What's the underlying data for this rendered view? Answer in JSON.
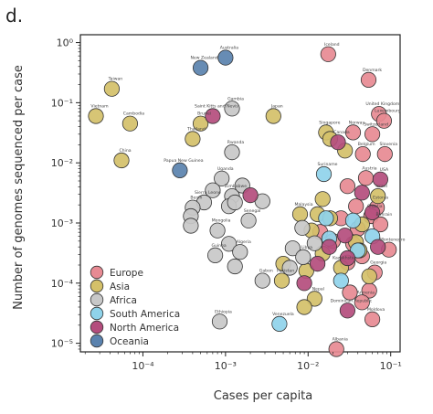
{
  "figure": {
    "panel_label": "d."
  },
  "chart_data": {
    "type": "scatter",
    "xlabel": "Cases per capita",
    "ylabel": "Number of genomes sequenced per case",
    "x_scale": "log",
    "y_scale": "log",
    "xlim": [
      1.75e-05,
      0.13
    ],
    "ylim": [
      7.2e-06,
      1.35
    ],
    "x_ticks": [
      {
        "value": 0.0001,
        "label": "10⁻⁴"
      },
      {
        "value": 0.001,
        "label": "10⁻³"
      },
      {
        "value": 0.01,
        "label": "10⁻²"
      },
      {
        "value": 0.1,
        "label": "10⁻¹"
      }
    ],
    "y_ticks": [
      {
        "value": 1,
        "label": "10⁰"
      },
      {
        "value": 0.1,
        "label": "10⁻¹"
      },
      {
        "value": 0.01,
        "label": "10⁻²"
      },
      {
        "value": 0.001,
        "label": "10⁻³"
      },
      {
        "value": 0.0001,
        "label": "10⁻⁴"
      },
      {
        "value": 1e-05,
        "label": "10⁻⁵"
      }
    ],
    "grid": false,
    "legend": {
      "placement": "lower-left",
      "entries": [
        {
          "name": "Europe",
          "color": "#e78a93"
        },
        {
          "name": "Asia",
          "color": "#d4c069"
        },
        {
          "name": "Africa",
          "color": "#c8c8c8"
        },
        {
          "name": "South America",
          "color": "#8fd3ea"
        },
        {
          "name": "North America",
          "color": "#b44d7d"
        },
        {
          "name": "Oceania",
          "color": "#5a82ae"
        }
      ]
    },
    "series": [
      {
        "name": "Europe",
        "color": "#e78a93",
        "points": [
          {
            "x": 0.0175,
            "y": 0.64,
            "label": "Iceland"
          },
          {
            "x": 0.054,
            "y": 0.24,
            "label": "Denmark"
          },
          {
            "x": 0.072,
            "y": 0.065,
            "label": "United Kingdom"
          },
          {
            "x": 0.083,
            "y": 0.05,
            "label": "Luxembourg"
          },
          {
            "x": 0.06,
            "y": 0.03,
            "label": "Switzerland"
          },
          {
            "x": 0.035,
            "y": 0.032,
            "label": "Norway"
          },
          {
            "x": 0.046,
            "y": 0.014,
            "label": "Belgium"
          },
          {
            "x": 0.085,
            "y": 0.014,
            "label": "Slovenia"
          },
          {
            "x": 0.05,
            "y": 0.0056,
            "label": "Austria"
          },
          {
            "x": 0.03,
            "y": 0.0041,
            "label": ""
          },
          {
            "x": 0.068,
            "y": 0.0018,
            "label": "Estonia"
          },
          {
            "x": 0.058,
            "y": 0.0013,
            "label": "Croatia"
          },
          {
            "x": 0.075,
            "y": 0.00095,
            "label": "Bahrain"
          },
          {
            "x": 0.04,
            "y": 0.0008,
            "label": ""
          },
          {
            "x": 0.025,
            "y": 0.0012,
            "label": ""
          },
          {
            "x": 0.095,
            "y": 0.00036,
            "label": "Montenegro"
          },
          {
            "x": 0.035,
            "y": 0.00045,
            "label": ""
          },
          {
            "x": 0.045,
            "y": 0.00028,
            "label": ""
          },
          {
            "x": 0.03,
            "y": 0.00022,
            "label": ""
          },
          {
            "x": 0.064,
            "y": 0.00015,
            "label": "Georgia"
          },
          {
            "x": 0.055,
            "y": 7.5e-05,
            "label": ""
          },
          {
            "x": 0.032,
            "y": 7e-05,
            "label": ""
          },
          {
            "x": 0.045,
            "y": 4.8e-05,
            "label": "Armenia"
          },
          {
            "x": 0.06,
            "y": 2.5e-05,
            "label": "Moldova"
          },
          {
            "x": 0.022,
            "y": 8e-06,
            "label": "Albania"
          },
          {
            "x": 0.014,
            "y": 0.00071,
            "label": ""
          },
          {
            "x": 0.02,
            "y": 0.0005,
            "label": ""
          },
          {
            "x": 0.038,
            "y": 0.0019,
            "label": ""
          }
        ]
      },
      {
        "name": "Asia",
        "color": "#d4c069",
        "points": [
          {
            "x": 4.2e-05,
            "y": 0.17,
            "label": "Taiwan"
          },
          {
            "x": 2.7e-05,
            "y": 0.06,
            "label": "Vietnam"
          },
          {
            "x": 7e-05,
            "y": 0.045,
            "label": "Cambodia"
          },
          {
            "x": 5.5e-05,
            "y": 0.011,
            "label": "China"
          },
          {
            "x": 0.0005,
            "y": 0.045,
            "label": "Brunei"
          },
          {
            "x": 0.0038,
            "y": 0.06,
            "label": "Japan"
          },
          {
            "x": 0.0004,
            "y": 0.025,
            "label": "Thailand"
          },
          {
            "x": 0.0165,
            "y": 0.032,
            "label": "Singapore"
          },
          {
            "x": 0.0185,
            "y": 0.025,
            "label": ""
          },
          {
            "x": 0.028,
            "y": 0.016,
            "label": ""
          },
          {
            "x": 0.013,
            "y": 0.0014,
            "label": ""
          },
          {
            "x": 0.0185,
            "y": 0.0012,
            "label": ""
          },
          {
            "x": 0.045,
            "y": 0.00095,
            "label": ""
          },
          {
            "x": 0.015,
            "y": 0.00031,
            "label": ""
          },
          {
            "x": 0.038,
            "y": 0.00048,
            "label": ""
          },
          {
            "x": 0.0095,
            "y": 0.00016,
            "label": ""
          },
          {
            "x": 0.005,
            "y": 0.00021,
            "label": ""
          },
          {
            "x": 0.0048,
            "y": 0.00011,
            "label": "Pakistan"
          },
          {
            "x": 0.012,
            "y": 5.5e-05,
            "label": "Nepal"
          },
          {
            "x": 0.009,
            "y": 4e-05,
            "label": ""
          },
          {
            "x": 0.008,
            "y": 0.0014,
            "label": "Malaysia"
          },
          {
            "x": 0.011,
            "y": 0.00075,
            "label": ""
          },
          {
            "x": 0.025,
            "y": 0.00018,
            "label": "Kazakhstan"
          },
          {
            "x": 0.055,
            "y": 0.00013,
            "label": ""
          },
          {
            "x": 0.042,
            "y": 0.00035,
            "label": ""
          },
          {
            "x": 0.07,
            "y": 0.0028,
            "label": "Israel"
          },
          {
            "x": 0.015,
            "y": 0.0025,
            "label": ""
          }
        ]
      },
      {
        "name": "Africa",
        "color": "#c8c8c8",
        "points": [
          {
            "x": 0.0012,
            "y": 0.08,
            "label": "Gambia"
          },
          {
            "x": 0.0012,
            "y": 0.015,
            "label": "Rwanda"
          },
          {
            "x": 0.0009,
            "y": 0.0055,
            "label": "Uganda"
          },
          {
            "x": 0.0007,
            "y": 0.0035,
            "label": ""
          },
          {
            "x": 0.00055,
            "y": 0.0022,
            "label": "Sierra Leone"
          },
          {
            "x": 0.0004,
            "y": 0.0018,
            "label": "Benin"
          },
          {
            "x": 0.00038,
            "y": 0.0013,
            "label": ""
          },
          {
            "x": 0.0012,
            "y": 0.0028,
            "label": "Zimbabwe"
          },
          {
            "x": 0.0016,
            "y": 0.0042,
            "label": ""
          },
          {
            "x": 0.0011,
            "y": 0.0019,
            "label": ""
          },
          {
            "x": 0.0013,
            "y": 0.0022,
            "label": ""
          },
          {
            "x": 0.0008,
            "y": 0.00075,
            "label": "Mongolia"
          },
          {
            "x": 0.0019,
            "y": 0.0011,
            "label": "Senegal"
          },
          {
            "x": 0.0028,
            "y": 0.0023,
            "label": ""
          },
          {
            "x": 0.0011,
            "y": 0.00045,
            "label": ""
          },
          {
            "x": 0.00075,
            "y": 0.00029,
            "label": "Guinea"
          },
          {
            "x": 0.0015,
            "y": 0.00033,
            "label": "Algeria"
          },
          {
            "x": 0.0013,
            "y": 0.00019,
            "label": ""
          },
          {
            "x": 0.0028,
            "y": 0.00011,
            "label": "Gabon"
          },
          {
            "x": 0.0065,
            "y": 0.00038,
            "label": ""
          },
          {
            "x": 0.0087,
            "y": 0.00027,
            "label": "Libya"
          },
          {
            "x": 0.012,
            "y": 0.00046,
            "label": ""
          },
          {
            "x": 0.0085,
            "y": 0.00083,
            "label": ""
          },
          {
            "x": 0.00085,
            "y": 2.3e-05,
            "label": "Ethiopia"
          },
          {
            "x": 0.006,
            "y": 0.00018,
            "label": ""
          },
          {
            "x": 0.00038,
            "y": 0.0009,
            "label": ""
          }
        ]
      },
      {
        "name": "South America",
        "color": "#8fd3ea",
        "points": [
          {
            "x": 0.0155,
            "y": 0.0065,
            "label": "Suriname"
          },
          {
            "x": 0.0165,
            "y": 0.0012,
            "label": ""
          },
          {
            "x": 0.035,
            "y": 0.0011,
            "label": ""
          },
          {
            "x": 0.06,
            "y": 0.0006,
            "label": ""
          },
          {
            "x": 0.04,
            "y": 0.00035,
            "label": ""
          },
          {
            "x": 0.025,
            "y": 0.00011,
            "label": ""
          },
          {
            "x": 0.0045,
            "y": 2.1e-05,
            "label": "Venezuela"
          },
          {
            "x": 0.018,
            "y": 0.00055,
            "label": ""
          }
        ]
      },
      {
        "name": "North America",
        "color": "#b44d7d",
        "points": [
          {
            "x": 0.0007,
            "y": 0.06,
            "label": "Saint Kitts and Nevis"
          },
          {
            "x": 0.023,
            "y": 0.022,
            "label": "Canada"
          },
          {
            "x": 0.002,
            "y": 0.0029,
            "label": ""
          },
          {
            "x": 0.075,
            "y": 0.0053,
            "label": "USA"
          },
          {
            "x": 0.045,
            "y": 0.0032,
            "label": ""
          },
          {
            "x": 0.013,
            "y": 0.00021,
            "label": ""
          },
          {
            "x": 0.03,
            "y": 0.00026,
            "label": ""
          },
          {
            "x": 0.03,
            "y": 3.5e-05,
            "label": "Dominican Republic"
          },
          {
            "x": 0.009,
            "y": 0.0001,
            "label": ""
          },
          {
            "x": 0.028,
            "y": 0.00062,
            "label": ""
          },
          {
            "x": 0.06,
            "y": 0.0015,
            "label": ""
          },
          {
            "x": 0.018,
            "y": 0.0004,
            "label": ""
          },
          {
            "x": 0.07,
            "y": 0.0004,
            "label": ""
          }
        ]
      },
      {
        "name": "Oceania",
        "color": "#5a82ae",
        "points": [
          {
            "x": 0.0005,
            "y": 0.38,
            "label": "New Zealand"
          },
          {
            "x": 0.001,
            "y": 0.56,
            "label": "Australia"
          },
          {
            "x": 0.00028,
            "y": 0.0075,
            "label": "Papua New Guinea"
          }
        ]
      }
    ]
  }
}
